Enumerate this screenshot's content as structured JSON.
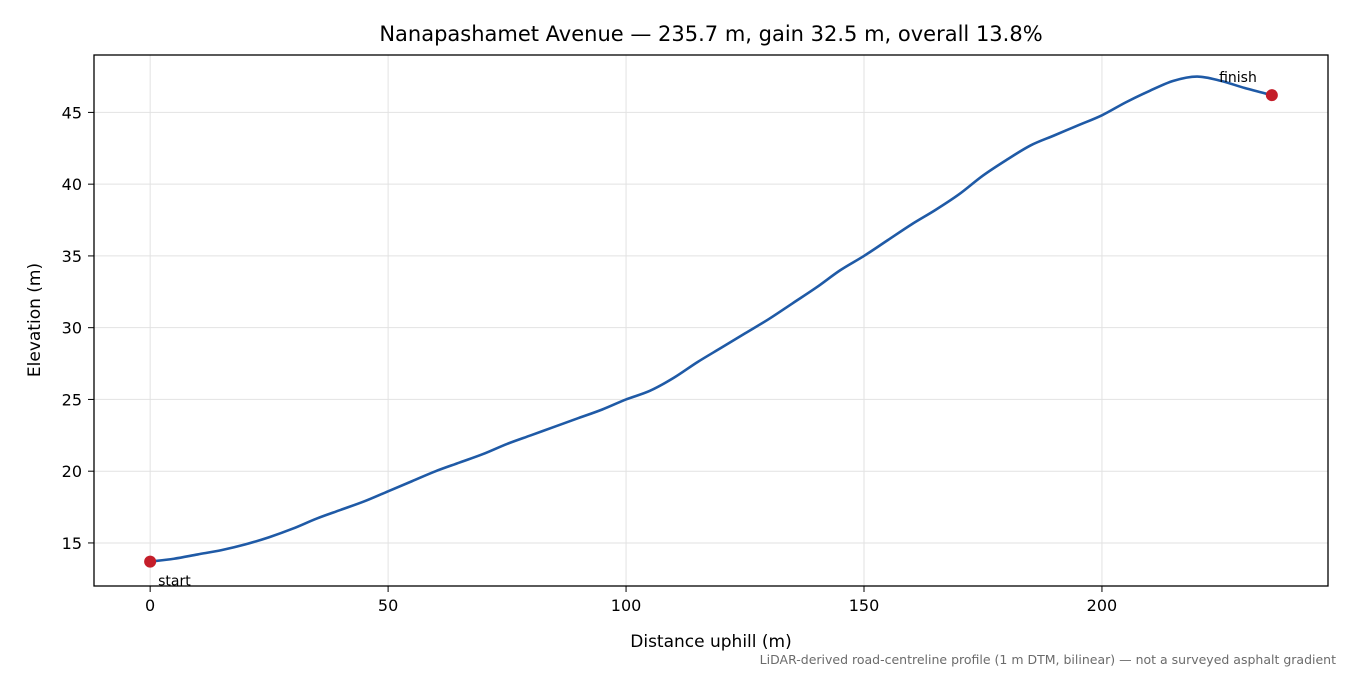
{
  "chart_data": {
    "type": "line",
    "title": "Nanapashamet Avenue — 235.7 m, gain 32.5 m, overall 13.8%",
    "xlabel": "Distance uphill (m)",
    "ylabel": "Elevation (m)",
    "xlim": [
      -11.8,
      247.5
    ],
    "ylim": [
      12.0,
      49.0
    ],
    "xticks": [
      0,
      50,
      100,
      150,
      200
    ],
    "yticks": [
      15,
      20,
      25,
      30,
      35,
      40,
      45
    ],
    "grid": true,
    "series": [
      {
        "color": "#1f5aa6",
        "x": [
          0,
          5,
          10,
          15,
          20,
          25,
          30,
          35,
          40,
          45,
          50,
          55,
          60,
          65,
          70,
          75,
          80,
          85,
          90,
          95,
          100,
          105,
          110,
          115,
          120,
          125,
          130,
          135,
          140,
          145,
          150,
          155,
          160,
          165,
          170,
          175,
          180,
          185,
          190,
          195,
          200,
          205,
          210,
          215,
          220,
          225,
          230,
          235.7
        ],
        "y": [
          13.7,
          13.9,
          14.2,
          14.5,
          14.9,
          15.4,
          16.0,
          16.7,
          17.3,
          17.9,
          18.6,
          19.3,
          20.0,
          20.6,
          21.2,
          21.9,
          22.5,
          23.1,
          23.7,
          24.3,
          25.0,
          25.6,
          26.5,
          27.6,
          28.6,
          29.6,
          30.6,
          31.7,
          32.8,
          34.0,
          35.0,
          36.1,
          37.2,
          38.2,
          39.3,
          40.6,
          41.7,
          42.7,
          43.4,
          44.1,
          44.8,
          45.7,
          46.5,
          47.2,
          47.5,
          47.2,
          46.7,
          46.2
        ]
      }
    ],
    "markers": [
      {
        "label": "start",
        "x": 0,
        "y": 13.7,
        "color": "#c41e2a"
      },
      {
        "label": "finish",
        "x": 235.7,
        "y": 46.2,
        "color": "#c41e2a"
      }
    ],
    "footnote": "LiDAR-derived road-centreline profile (1 m DTM, bilinear) — not a surveyed asphalt gradient"
  }
}
